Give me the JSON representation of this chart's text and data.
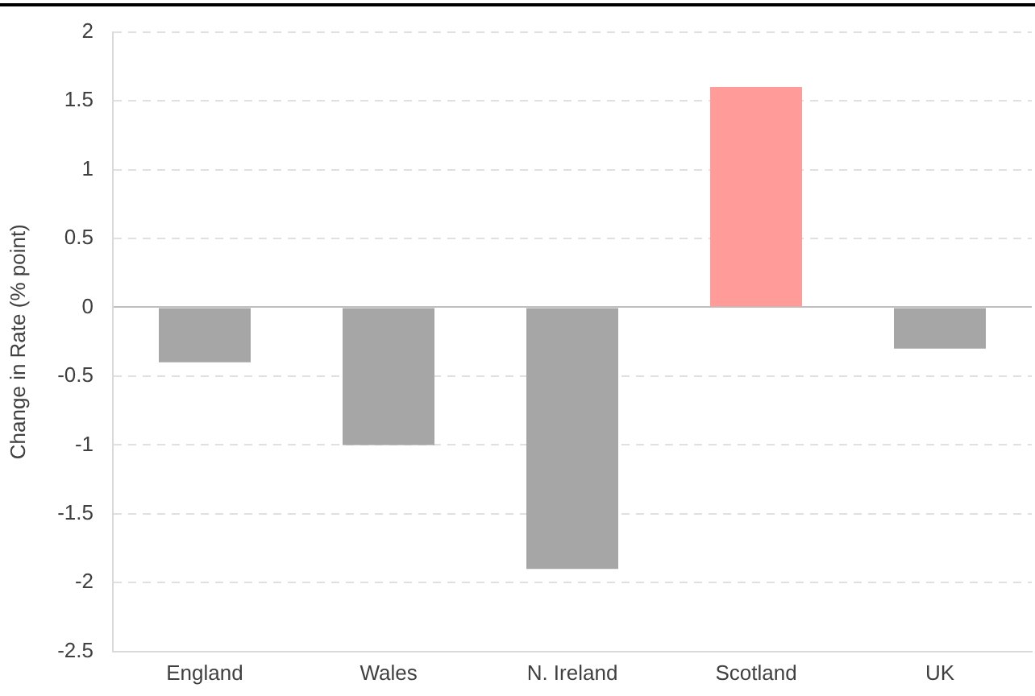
{
  "chart_data": {
    "type": "bar",
    "ylabel": "Change in Rate (% point)",
    "categories": [
      "England",
      "Wales",
      "N. Ireland",
      "Scotland",
      "UK"
    ],
    "values": [
      -0.4,
      -1.0,
      -1.9,
      1.6,
      -0.3
    ],
    "colors": [
      "#a6a6a6",
      "#a6a6a6",
      "#a6a6a6",
      "#ff9b98",
      "#a6a6a6"
    ],
    "ylim": [
      -2.5,
      2
    ],
    "yticks": [
      -2.5,
      -2,
      -1.5,
      -1,
      -0.5,
      0,
      0.5,
      1,
      1.5,
      2
    ],
    "grid": "y",
    "legend": false
  }
}
